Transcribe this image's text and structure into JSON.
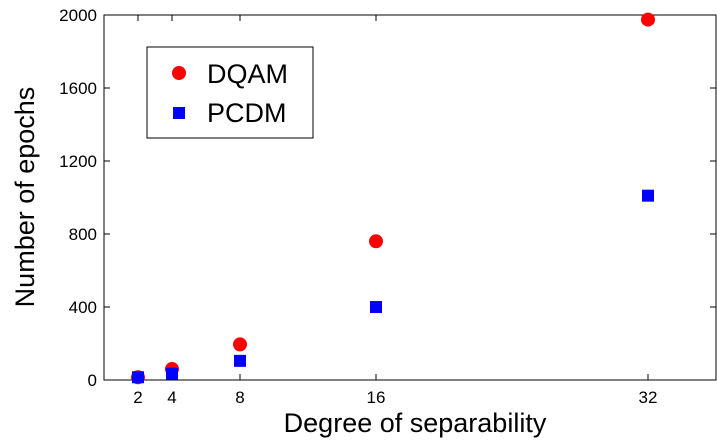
{
  "chart_data": {
    "type": "scatter",
    "title": "",
    "xlabel": "Degree of separability",
    "ylabel": "Number of epochs",
    "xlim": [
      0,
      36
    ],
    "ylim": [
      0,
      2000
    ],
    "xticks": [
      2,
      4,
      8,
      16,
      32
    ],
    "yticks": [
      0,
      400,
      800,
      1200,
      1600,
      2000
    ],
    "grid": false,
    "legend_position": "top-left",
    "series": [
      {
        "name": "DQAM",
        "marker": "circle",
        "color": "#ff0000",
        "x": [
          2,
          4,
          8,
          16,
          32
        ],
        "y": [
          15,
          60,
          195,
          760,
          1975
        ]
      },
      {
        "name": "PCDM",
        "marker": "square",
        "color": "#0000ff",
        "x": [
          2,
          4,
          8,
          16,
          32
        ],
        "y": [
          15,
          35,
          105,
          400,
          1010
        ]
      }
    ]
  }
}
